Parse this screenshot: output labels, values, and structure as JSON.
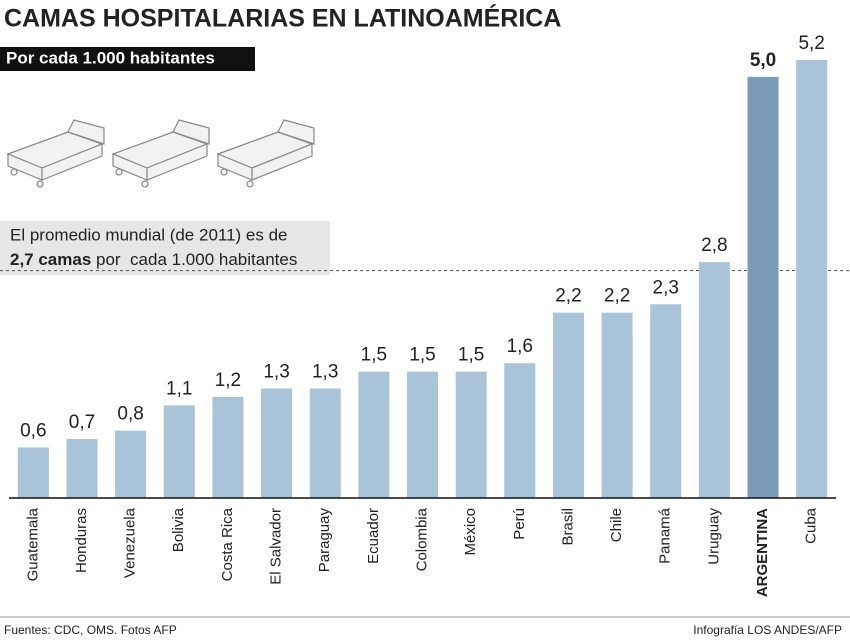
{
  "chart_data": {
    "type": "bar",
    "title": "CAMAS HOSPITALARIAS EN LATINOAMÉRICA",
    "subtitle": "Por cada 1.000 habitantes",
    "categories": [
      "Guatemala",
      "Honduras",
      "Venezuela",
      "Bolivia",
      "Costa Rica",
      "El Salvador",
      "Paraguay",
      "Ecuador",
      "Colombia",
      "México",
      "Perú",
      "Brasil",
      "Chile",
      "Panamá",
      "Uruguay",
      "ARGENTINA",
      "Cuba"
    ],
    "values": [
      0.6,
      0.7,
      0.8,
      1.1,
      1.2,
      1.3,
      1.3,
      1.5,
      1.5,
      1.5,
      1.6,
      2.2,
      2.2,
      2.3,
      2.8,
      5.0,
      5.2
    ],
    "value_labels": [
      "0,6",
      "0,7",
      "0,8",
      "1,1",
      "1,2",
      "1,3",
      "1,3",
      "1,5",
      "1,5",
      "1,5",
      "1,6",
      "2,2",
      "2,2",
      "2,3",
      "2,8",
      "5,0",
      "5,2"
    ],
    "color": "#a9c3d9",
    "highlight_color": "#7b9cb9",
    "colors": [
      "#a9c3d9",
      "#a9c3d9",
      "#a9c3d9",
      "#a9c3d9",
      "#a9c3d9",
      "#a9c3d9",
      "#a9c3d9",
      "#a9c3d9",
      "#a9c3d9",
      "#a9c3d9",
      "#a9c3d9",
      "#a9c3d9",
      "#a9c3d9",
      "#a9c3d9",
      "#a9c3d9",
      "#7b9cb9",
      "#a9c3d9"
    ],
    "ylim": [
      0,
      5.2
    ],
    "reference_line": {
      "value": 2.7,
      "text": "El promedio mundial (de 2011) es de",
      "text_bold": "2,7 camas",
      "text_rest": " por  cada 1.000 habitantes"
    },
    "source": "Fuentes: CDC, OMS. Fotos AFP",
    "credit": "Infografía LOS ANDES/AFP"
  }
}
